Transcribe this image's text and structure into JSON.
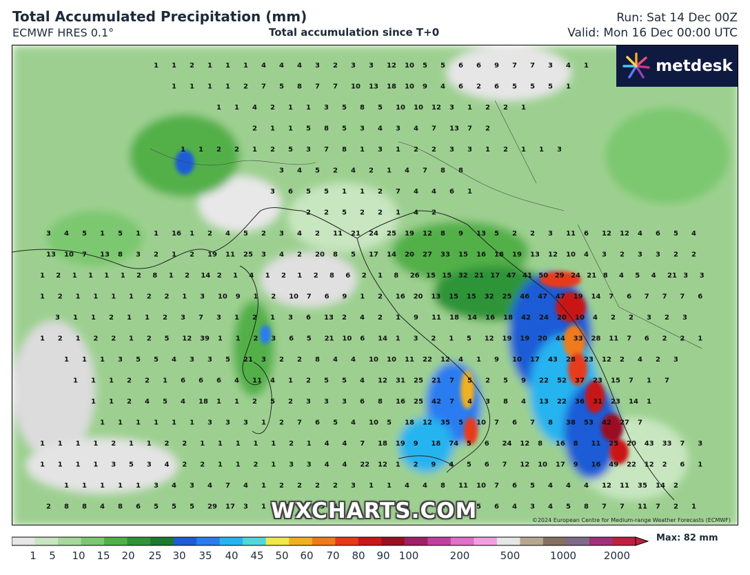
{
  "header": {
    "title": "Total Accumulated Precipitation (mm)",
    "model": "ECMWF HRES 0.1°",
    "center_subtitle": "Total accumulation since T+0",
    "run": "Run: Sat 14 Dec 00Z",
    "valid": "Valid: Mon 16 Dec 00:00 UTC"
  },
  "branding": {
    "logo_text": "metdesk",
    "watermark": "WXCHARTS.COM",
    "copyright": "©2024 European Centre for Medium-range Weather Forecasts (ECMWF)"
  },
  "legend": {
    "max_label": "Max: 82 mm",
    "tick_labels": [
      "1",
      "5",
      "10",
      "15",
      "20",
      "25",
      "30",
      "35",
      "40",
      "45",
      "50",
      "60",
      "70",
      "80",
      "90",
      "100",
      "200",
      "500",
      "1000",
      "2000"
    ],
    "colors": [
      "#e6e6e6",
      "#c8e6c0",
      "#a6d99a",
      "#7cc870",
      "#52b048",
      "#2f9438",
      "#1e7a2c",
      "#1f5bd6",
      "#2b7cf0",
      "#26b4f0",
      "#4fd8d8",
      "#f0e84a",
      "#f0b020",
      "#f07a1a",
      "#e83a1a",
      "#c81818",
      "#9a1020",
      "#a0206a",
      "#c040a0",
      "#e070c8",
      "#f0a0e0",
      "#e6e6e6",
      "#b8a890",
      "#887060",
      "#806a8a",
      "#a0307a",
      "#c02040"
    ]
  },
  "map": {
    "rows": [
      "1 1 2 1 1 1 4 4 4 3 2 3 3 12 10 5 5 6 6 9 7 7 3 4 1",
      "1 1 1 1 2 7 5 8 7 7 10 13 18 10 9 4 6 2 6 5 5 5 1",
      "1 1 4 2 1 1 3 5 8 5 10 10 12 3 1 2 2 1",
      "2 1 1 5 8 5 3 4 3 4 7 13 7 2",
      "1 1 2 2 1 2 5 3 7 8 1 3 1 2 2 3 3 1 2 1 1 3",
      "3 4 5 2 4 2 1 4 7 8 8",
      "3 6 5 5 1 1 2 7 4 4 6 1",
      "2 2 5 2 2 1 4 2",
      "3 4 5 1 5 1 1 16 1 2 4 5 2 3 4 2 11 21 24 25 19 12 8 9 13 5 2 2 3 11 6 12 12 4 6 5 4",
      "13 10 7 13 8 3 2 1 2 19 11 25 3 4 2 20 8 5 17 14 20 27 33 15 16 18 19 13 12 10 4 3 2 3 3 2 2",
      "1 2 1 1 1 1 2 8 1 2 14 2 1 4 1 2 1 2 8 6 2 1 8 26 15 15 32 21 17 47 41 50 29 24 21 8 4 5 4 21 3 3",
      "1 2 1 1 1 1 2 2 1 3 10 9 1 2 10 7 6 9 1 2 16 20 13 15 15 32 25 46 47 47 19 14 7 6 7 7 7 6",
      "3 1 1 2 1 1 2 3 7 3 1 2 1 3 6 13 2 4 2 1 9 11 18 14 16 18 42 24 20 10 4 2 2 3 2 3",
      "1 2 1 2 2 1 2 5 12 39 1 1 2 3 6 5 21 10 6 14 1 3 2 1 5 12 19 19 20 44 33 28 11 7 6 2 2 1",
      "1 1 1 3 5 5 4 3 3 5 21 3 2 2 8 4 4 10 10 11 22 12 4 1 9 10 17 43 28 23 12 2 4 2 3",
      "1 1 1 2 2 1 6 6 6 4 11 4 1 2 5 5 4 12 31 25 21 7 5 2 5 9 22 52 37 23 15 7 1 7",
      "1 1 2 4 5 4 18 1 1 2 5 2 3 3 3 6 8 16 25 42 7 4 3 8 4 13 22 36 31 23 14 1",
      "1 1 1 1 1 1 3 3 3 1 2 7 6 5 4 10 5 18 12 35 5 10 7 6 7 8 38 53 42 27 7",
      "1 1 1 1 2 1 1 2 2 1 1 1 1 1 2 1 4 4 7 18 19 9 18 74 5 6 24 12 8 16 8 11 25 20 43 33 7 3",
      "1 1 1 1 3 5 3 4 2 2 1 1 2 1 3 3 4 4 22 12 1 2 9 4 5 6 7 12 10 17 9 16 49 22 12 2 6 1",
      "1 1 1 1 1 3 4 3 4 7 4 1 2 2 2 2 3 1 1 4 4 8 11 10 7 6 5 4 4 4 12 11 35 14 2",
      "2 8 8 4 8 6 5 5 5 29 17 3 1 12 23 13 5 8 2 1 4 2 3 4 5 6 4 3 4 5 8 7 7 11 7 2 1"
    ]
  }
}
